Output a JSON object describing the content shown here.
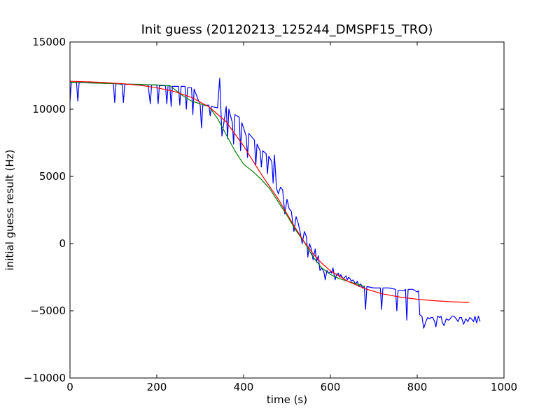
{
  "chart_data": {
    "type": "line",
    "title": "Init guess (20120213_125244_DMSPF15_TRO)",
    "xlabel": "time (s)",
    "ylabel": "initial guess result (Hz)",
    "xlim": [
      0,
      1000
    ],
    "ylim": [
      -10000,
      15000
    ],
    "x_ticks": [
      0,
      200,
      400,
      600,
      800,
      1000
    ],
    "y_ticks": [
      -10000,
      -5000,
      0,
      5000,
      10000,
      15000
    ],
    "x_tick_labels": [
      "0",
      "200",
      "400",
      "600",
      "800",
      "1000"
    ],
    "y_tick_labels": [
      "−10000",
      "−5000",
      "0",
      "5000",
      "10000",
      "15000"
    ],
    "grid": false,
    "legend": "none",
    "series": [
      {
        "color": "#0000ff",
        "points": [
          [
            0,
            10600
          ],
          [
            3,
            12000
          ],
          [
            15,
            12000
          ],
          [
            18,
            10600
          ],
          [
            21,
            11950
          ],
          [
            25,
            12000
          ],
          [
            60,
            11950
          ],
          [
            100,
            11900
          ],
          [
            103,
            10500
          ],
          [
            106,
            11900
          ],
          [
            120,
            11850
          ],
          [
            123,
            10500
          ],
          [
            126,
            11850
          ],
          [
            160,
            11850
          ],
          [
            180,
            11800
          ],
          [
            185,
            10400
          ],
          [
            188,
            11800
          ],
          [
            200,
            11800
          ],
          [
            203,
            10400
          ],
          [
            206,
            11750
          ],
          [
            220,
            11750
          ],
          [
            223,
            10400
          ],
          [
            226,
            11750
          ],
          [
            230,
            11750
          ],
          [
            233,
            10200
          ],
          [
            236,
            11700
          ],
          [
            250,
            11700
          ],
          [
            253,
            10300
          ],
          [
            256,
            11700
          ],
          [
            265,
            11700
          ],
          [
            268,
            10000
          ],
          [
            271,
            11600
          ],
          [
            280,
            11600
          ],
          [
            283,
            9600
          ],
          [
            286,
            11500
          ],
          [
            300,
            10300
          ],
          [
            303,
            8600
          ],
          [
            306,
            10300
          ],
          [
            320,
            10300
          ],
          [
            323,
            9500
          ],
          [
            326,
            10200
          ],
          [
            340,
            10100
          ],
          [
            345,
            12300
          ],
          [
            350,
            8000
          ],
          [
            360,
            10200
          ],
          [
            363,
            7800
          ],
          [
            366,
            10000
          ],
          [
            374,
            9000
          ],
          [
            377,
            7400
          ],
          [
            380,
            9600
          ],
          [
            390,
            9400
          ],
          [
            393,
            6900
          ],
          [
            396,
            9000
          ],
          [
            406,
            8000
          ],
          [
            409,
            6400
          ],
          [
            412,
            8200
          ],
          [
            425,
            7700
          ],
          [
            428,
            5800
          ],
          [
            431,
            7400
          ],
          [
            438,
            6900
          ],
          [
            441,
            5700
          ],
          [
            444,
            6900
          ],
          [
            452,
            6700
          ],
          [
            455,
            5200
          ],
          [
            458,
            6500
          ],
          [
            465,
            6100
          ],
          [
            468,
            4500
          ],
          [
            471,
            6600
          ],
          [
            476,
            4100
          ],
          [
            480,
            3700
          ],
          [
            485,
            4200
          ],
          [
            490,
            4000
          ],
          [
            495,
            2200
          ],
          [
            500,
            3300
          ],
          [
            505,
            2600
          ],
          [
            510,
            2400
          ],
          [
            516,
            900
          ],
          [
            521,
            2000
          ],
          [
            526,
            1500
          ],
          [
            530,
            900
          ],
          [
            535,
            0
          ],
          [
            540,
            900
          ],
          [
            545,
            500
          ],
          [
            548,
            -1000
          ],
          [
            552,
            0
          ],
          [
            556,
            -400
          ],
          [
            560,
            -1200
          ],
          [
            565,
            -400
          ],
          [
            568,
            -1400
          ],
          [
            572,
            -900
          ],
          [
            576,
            -2000
          ],
          [
            580,
            -1800
          ],
          [
            585,
            -2100
          ],
          [
            588,
            -2700
          ],
          [
            592,
            -2000
          ],
          [
            596,
            -2200
          ],
          [
            600,
            -2100
          ],
          [
            603,
            -2200
          ],
          [
            606,
            -1800
          ],
          [
            609,
            -2400
          ],
          [
            611,
            -2700
          ],
          [
            614,
            -2300
          ],
          [
            618,
            -2200
          ],
          [
            621,
            -2500
          ],
          [
            624,
            -2300
          ],
          [
            627,
            -2500
          ],
          [
            630,
            -2600
          ],
          [
            633,
            -2500
          ],
          [
            636,
            -2400
          ],
          [
            639,
            -2700
          ],
          [
            642,
            -2500
          ],
          [
            645,
            -2600
          ],
          [
            648,
            -2800
          ],
          [
            652,
            -2700
          ],
          [
            658,
            -3000
          ],
          [
            662,
            -2800
          ],
          [
            666,
            -3200
          ],
          [
            670,
            -3000
          ],
          [
            674,
            -3300
          ],
          [
            678,
            -3200
          ],
          [
            681,
            -4900
          ],
          [
            684,
            -3200
          ],
          [
            700,
            -3300
          ],
          [
            715,
            -3300
          ],
          [
            718,
            -4900
          ],
          [
            721,
            -3300
          ],
          [
            735,
            -3300
          ],
          [
            750,
            -3400
          ],
          [
            753,
            -5000
          ],
          [
            756,
            -3500
          ],
          [
            770,
            -3500
          ],
          [
            773,
            -3400
          ],
          [
            776,
            -5700
          ],
          [
            779,
            -3400
          ],
          [
            790,
            -3400
          ],
          [
            795,
            -3500
          ],
          [
            800,
            -3600
          ],
          [
            803,
            -3500
          ],
          [
            806,
            -5300
          ],
          [
            811,
            -5400
          ],
          [
            815,
            -6300
          ],
          [
            820,
            -5800
          ],
          [
            824,
            -5500
          ],
          [
            828,
            -5600
          ],
          [
            832,
            -5500
          ],
          [
            836,
            -5500
          ],
          [
            840,
            -5800
          ],
          [
            843,
            -6200
          ],
          [
            847,
            -5400
          ],
          [
            852,
            -5500
          ],
          [
            855,
            -5400
          ],
          [
            858,
            -5900
          ],
          [
            862,
            -6100
          ],
          [
            867,
            -5600
          ],
          [
            872,
            -5700
          ],
          [
            876,
            -5600
          ],
          [
            880,
            -5400
          ],
          [
            885,
            -5400
          ],
          [
            890,
            -5600
          ],
          [
            894,
            -5800
          ],
          [
            898,
            -5500
          ],
          [
            902,
            -5500
          ],
          [
            907,
            -6000
          ],
          [
            912,
            -5600
          ],
          [
            917,
            -5800
          ],
          [
            921,
            -5500
          ],
          [
            925,
            -5600
          ],
          [
            930,
            -5800
          ],
          [
            933,
            -5400
          ],
          [
            937,
            -5900
          ],
          [
            941,
            -5400
          ],
          [
            945,
            -5800
          ]
        ]
      },
      {
        "color": "#008000",
        "points": [
          [
            0,
            12000
          ],
          [
            20,
            12000
          ],
          [
            50,
            11950
          ],
          [
            100,
            11900
          ],
          [
            150,
            11850
          ],
          [
            200,
            11800
          ],
          [
            230,
            11750
          ],
          [
            260,
            11000
          ],
          [
            280,
            10600
          ],
          [
            300,
            10400
          ],
          [
            320,
            10200
          ],
          [
            340,
            9300
          ],
          [
            360,
            8100
          ],
          [
            380,
            6900
          ],
          [
            400,
            5900
          ],
          [
            420,
            5400
          ],
          [
            440,
            4800
          ],
          [
            460,
            4100
          ],
          [
            480,
            3100
          ],
          [
            500,
            2100
          ],
          [
            520,
            1000
          ],
          [
            540,
            100
          ],
          [
            560,
            -1000
          ],
          [
            580,
            -1800
          ],
          [
            600,
            -2300
          ],
          [
            620,
            -2600
          ],
          [
            640,
            -2800
          ],
          [
            660,
            -3000
          ],
          [
            680,
            -3200
          ]
        ]
      },
      {
        "color": "#ff0000",
        "points": [
          [
            0,
            12080
          ],
          [
            40,
            12040
          ],
          [
            80,
            11980
          ],
          [
            120,
            11900
          ],
          [
            160,
            11780
          ],
          [
            200,
            11600
          ],
          [
            240,
            11320
          ],
          [
            280,
            10880
          ],
          [
            320,
            10180
          ],
          [
            360,
            9060
          ],
          [
            400,
            7260
          ],
          [
            440,
            5200
          ],
          [
            480,
            3300
          ],
          [
            520,
            1120
          ],
          [
            540,
            120
          ],
          [
            560,
            -740
          ],
          [
            580,
            -1460
          ],
          [
            600,
            -2020
          ],
          [
            640,
            -2800
          ],
          [
            680,
            -3360
          ],
          [
            720,
            -3740
          ],
          [
            760,
            -3980
          ],
          [
            800,
            -4140
          ],
          [
            840,
            -4250
          ],
          [
            880,
            -4330
          ],
          [
            920,
            -4380
          ]
        ]
      }
    ]
  }
}
